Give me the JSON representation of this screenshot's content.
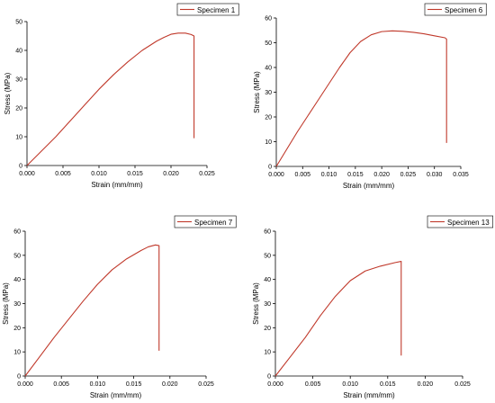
{
  "chart_data": [
    {
      "type": "line",
      "series": [
        {
          "name": "Specimen 1",
          "color": "#c0392b",
          "x": [
            0,
            0.002,
            0.004,
            0.006,
            0.008,
            0.01,
            0.012,
            0.014,
            0.016,
            0.018,
            0.019,
            0.02,
            0.021,
            0.022,
            0.0228,
            0.0232,
            0.0232
          ],
          "y": [
            0,
            5,
            10,
            15.5,
            21,
            26.5,
            31.5,
            36,
            40,
            43.2,
            44.5,
            45.6,
            46,
            46,
            45.5,
            45,
            9.5
          ]
        }
      ],
      "xlabel": "Strain (mm/mm)",
      "ylabel": "Stress (MPa)",
      "xlim": [
        0,
        0.025
      ],
      "ylim": [
        0,
        50
      ],
      "xticks": [
        "0.000",
        "0.005",
        "0.010",
        "0.015",
        "0.020",
        "0.025"
      ],
      "yticks": [
        "0",
        "10",
        "20",
        "30",
        "40",
        "50"
      ],
      "grid": false,
      "legend": "top-right"
    },
    {
      "type": "line",
      "series": [
        {
          "name": "Specimen 6",
          "color": "#c0392b",
          "x": [
            0,
            0.002,
            0.004,
            0.006,
            0.008,
            0.01,
            0.012,
            0.014,
            0.016,
            0.018,
            0.02,
            0.022,
            0.024,
            0.026,
            0.028,
            0.03,
            0.032,
            0.0323,
            0.0323
          ],
          "y": [
            0,
            7,
            14,
            20.5,
            27,
            33.5,
            40,
            46,
            50.5,
            53.2,
            54.5,
            54.8,
            54.6,
            54.2,
            53.6,
            52.8,
            52,
            51.5,
            9.5
          ]
        }
      ],
      "xlabel": "Strain (mm/mm)",
      "ylabel": "Stress (MPa)",
      "xlim": [
        0,
        0.035
      ],
      "ylim": [
        0,
        60
      ],
      "xticks": [
        "0.000",
        "0.005",
        "0.010",
        "0.015",
        "0.020",
        "0.025",
        "0.030",
        "0.035"
      ],
      "yticks": [
        "0",
        "10",
        "20",
        "30",
        "40",
        "50",
        "60"
      ],
      "grid": false,
      "legend": "top-right"
    },
    {
      "type": "line",
      "series": [
        {
          "name": "Specimen 7",
          "color": "#c0392b",
          "x": [
            0,
            0.002,
            0.004,
            0.006,
            0.008,
            0.01,
            0.012,
            0.014,
            0.016,
            0.017,
            0.018,
            0.0185,
            0.0185
          ],
          "y": [
            0,
            8,
            16,
            23.5,
            31,
            38,
            44,
            48.5,
            52,
            53.5,
            54.3,
            54,
            10.5
          ]
        }
      ],
      "xlabel": "Strain (mm/mm)",
      "ylabel": "Stress (MPa)",
      "xlim": [
        0,
        0.025
      ],
      "ylim": [
        0,
        60
      ],
      "xticks": [
        "0.000",
        "0.005",
        "0.010",
        "0.015",
        "0.020",
        "0.025"
      ],
      "yticks": [
        "0",
        "10",
        "20",
        "30",
        "40",
        "50",
        "60"
      ],
      "grid": false,
      "legend": "top-right"
    },
    {
      "type": "line",
      "series": [
        {
          "name": "Specimen 13",
          "color": "#c0392b",
          "x": [
            0,
            0.002,
            0.004,
            0.006,
            0.008,
            0.01,
            0.012,
            0.014,
            0.016,
            0.0168,
            0.0168
          ],
          "y": [
            0,
            8,
            16,
            25,
            33,
            39.5,
            43.5,
            45.5,
            47,
            47.5,
            8.5
          ]
        }
      ],
      "xlabel": "Strain (mm/mm)",
      "ylabel": "Stress (MPa)",
      "xlim": [
        0,
        0.025
      ],
      "ylim": [
        0,
        60
      ],
      "xticks": [
        "0.000",
        "0.005",
        "0.010",
        "0.015",
        "0.020",
        "0.025"
      ],
      "yticks": [
        "0",
        "10",
        "20",
        "30",
        "40",
        "50",
        "60"
      ],
      "grid": false,
      "legend": "top-right"
    }
  ]
}
